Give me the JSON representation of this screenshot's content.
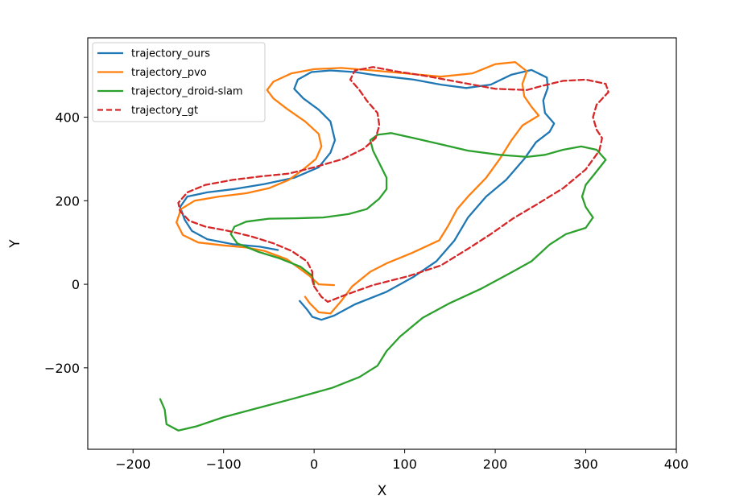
{
  "chart_data": {
    "type": "line",
    "title": "",
    "xlabel": "X",
    "ylabel": "Y",
    "xlim": [
      -250,
      400
    ],
    "ylim": [
      -395,
      590
    ],
    "xticks": [
      -200,
      -100,
      0,
      100,
      200,
      300,
      400
    ],
    "yticks": [
      -200,
      0,
      200,
      400
    ],
    "xtick_labels": [
      "−200",
      "−100",
      "0",
      "100",
      "200",
      "300",
      "400"
    ],
    "ytick_labels": [
      "−200",
      "0",
      "200",
      "400"
    ],
    "grid": false,
    "legend_position": "top-left",
    "series": [
      {
        "name": "trajectory_ours",
        "color": "#1f77b4",
        "dash": "solid",
        "points": [
          [
            -16,
            -40
          ],
          [
            -8,
            -60
          ],
          [
            -2,
            -78
          ],
          [
            8,
            -85
          ],
          [
            22,
            -75
          ],
          [
            45,
            -48
          ],
          [
            80,
            -18
          ],
          [
            110,
            18
          ],
          [
            135,
            55
          ],
          [
            155,
            105
          ],
          [
            170,
            160
          ],
          [
            190,
            210
          ],
          [
            212,
            250
          ],
          [
            232,
            300
          ],
          [
            245,
            340
          ],
          [
            260,
            365
          ],
          [
            265,
            385
          ],
          [
            255,
            410
          ],
          [
            253,
            440
          ],
          [
            258,
            470
          ],
          [
            257,
            495
          ],
          [
            240,
            513
          ],
          [
            218,
            502
          ],
          [
            195,
            478
          ],
          [
            168,
            470
          ],
          [
            140,
            478
          ],
          [
            110,
            490
          ],
          [
            70,
            500
          ],
          [
            45,
            508
          ],
          [
            18,
            512
          ],
          [
            -3,
            508
          ],
          [
            -18,
            490
          ],
          [
            -22,
            468
          ],
          [
            -12,
            445
          ],
          [
            5,
            418
          ],
          [
            18,
            390
          ],
          [
            23,
            345
          ],
          [
            18,
            315
          ],
          [
            5,
            280
          ],
          [
            -22,
            255
          ],
          [
            -55,
            240
          ],
          [
            -88,
            228
          ],
          [
            -118,
            220
          ],
          [
            -140,
            210
          ],
          [
            -148,
            185
          ],
          [
            -143,
            155
          ],
          [
            -135,
            128
          ],
          [
            -118,
            108
          ],
          [
            -90,
            96
          ],
          [
            -60,
            90
          ],
          [
            -40,
            82
          ]
        ]
      },
      {
        "name": "trajectory_pvo",
        "color": "#ff7f0e",
        "dash": "solid",
        "points": [
          [
            22,
            -2
          ],
          [
            5,
            0
          ],
          [
            -5,
            20
          ],
          [
            -30,
            60
          ],
          [
            -55,
            80
          ],
          [
            -75,
            88
          ],
          [
            -100,
            93
          ],
          [
            -128,
            100
          ],
          [
            -145,
            118
          ],
          [
            -152,
            148
          ],
          [
            -147,
            180
          ],
          [
            -132,
            200
          ],
          [
            -105,
            210
          ],
          [
            -75,
            218
          ],
          [
            -50,
            230
          ],
          [
            -28,
            250
          ],
          [
            -12,
            275
          ],
          [
            2,
            300
          ],
          [
            8,
            330
          ],
          [
            5,
            360
          ],
          [
            -10,
            390
          ],
          [
            -30,
            420
          ],
          [
            -45,
            445
          ],
          [
            -52,
            465
          ],
          [
            -45,
            485
          ],
          [
            -25,
            505
          ],
          [
            0,
            515
          ],
          [
            30,
            518
          ],
          [
            65,
            512
          ],
          [
            110,
            503
          ],
          [
            140,
            497
          ],
          [
            175,
            505
          ],
          [
            200,
            527
          ],
          [
            222,
            532
          ],
          [
            235,
            510
          ],
          [
            230,
            480
          ],
          [
            232,
            450
          ],
          [
            240,
            425
          ],
          [
            248,
            404
          ],
          [
            230,
            380
          ],
          [
            218,
            345
          ],
          [
            205,
            300
          ],
          [
            190,
            255
          ],
          [
            170,
            210
          ],
          [
            158,
            180
          ],
          [
            148,
            140
          ],
          [
            138,
            105
          ],
          [
            108,
            75
          ],
          [
            80,
            50
          ],
          [
            62,
            30
          ],
          [
            42,
            -5
          ],
          [
            30,
            -40
          ],
          [
            18,
            -70
          ],
          [
            5,
            -67
          ],
          [
            -5,
            -45
          ],
          [
            -10,
            -30
          ]
        ]
      },
      {
        "name": "trajectory_droid-slam",
        "color": "#2ca02c",
        "dash": "solid",
        "points": [
          [
            -170,
            -275
          ],
          [
            -165,
            -300
          ],
          [
            -163,
            -335
          ],
          [
            -150,
            -350
          ],
          [
            -130,
            -340
          ],
          [
            -100,
            -318
          ],
          [
            -60,
            -295
          ],
          [
            -20,
            -272
          ],
          [
            20,
            -248
          ],
          [
            50,
            -222
          ],
          [
            70,
            -195
          ],
          [
            80,
            -160
          ],
          [
            95,
            -125
          ],
          [
            120,
            -80
          ],
          [
            150,
            -45
          ],
          [
            185,
            -10
          ],
          [
            215,
            25
          ],
          [
            240,
            55
          ],
          [
            260,
            95
          ],
          [
            278,
            120
          ],
          [
            300,
            135
          ],
          [
            308,
            160
          ],
          [
            300,
            185
          ],
          [
            296,
            210
          ],
          [
            300,
            238
          ],
          [
            310,
            265
          ],
          [
            322,
            298
          ],
          [
            312,
            322
          ],
          [
            295,
            330
          ],
          [
            275,
            322
          ],
          [
            255,
            310
          ],
          [
            235,
            305
          ],
          [
            205,
            310
          ],
          [
            170,
            320
          ],
          [
            140,
            335
          ],
          [
            110,
            350
          ],
          [
            85,
            362
          ],
          [
            70,
            358
          ],
          [
            62,
            345
          ],
          [
            65,
            320
          ],
          [
            72,
            290
          ],
          [
            80,
            255
          ],
          [
            80,
            228
          ],
          [
            72,
            205
          ],
          [
            58,
            180
          ],
          [
            38,
            168
          ],
          [
            10,
            160
          ],
          [
            -20,
            158
          ],
          [
            -50,
            157
          ],
          [
            -75,
            150
          ],
          [
            -88,
            138
          ],
          [
            -92,
            120
          ],
          [
            -85,
            98
          ],
          [
            -62,
            78
          ],
          [
            -38,
            62
          ],
          [
            -15,
            42
          ],
          [
            -2,
            20
          ],
          [
            0,
            0
          ]
        ]
      },
      {
        "name": "trajectory_gt",
        "color": "#d62728",
        "dash": "dashed",
        "points": [
          [
            0,
            -5
          ],
          [
            8,
            -30
          ],
          [
            15,
            -42
          ],
          [
            35,
            -25
          ],
          [
            65,
            -2
          ],
          [
            105,
            20
          ],
          [
            140,
            45
          ],
          [
            170,
            85
          ],
          [
            195,
            120
          ],
          [
            220,
            158
          ],
          [
            245,
            190
          ],
          [
            275,
            230
          ],
          [
            300,
            275
          ],
          [
            315,
            320
          ],
          [
            318,
            350
          ],
          [
            312,
            370
          ],
          [
            308,
            400
          ],
          [
            312,
            430
          ],
          [
            325,
            460
          ],
          [
            322,
            480
          ],
          [
            300,
            490
          ],
          [
            275,
            487
          ],
          [
            250,
            474
          ],
          [
            235,
            465
          ],
          [
            200,
            468
          ],
          [
            175,
            478
          ],
          [
            150,
            488
          ],
          [
            120,
            500
          ],
          [
            90,
            510
          ],
          [
            65,
            520
          ],
          [
            45,
            512
          ],
          [
            40,
            490
          ],
          [
            50,
            465
          ],
          [
            58,
            440
          ],
          [
            70,
            410
          ],
          [
            72,
            380
          ],
          [
            68,
            350
          ],
          [
            55,
            325
          ],
          [
            32,
            300
          ],
          [
            0,
            280
          ],
          [
            -28,
            265
          ],
          [
            -60,
            258
          ],
          [
            -90,
            250
          ],
          [
            -120,
            238
          ],
          [
            -140,
            220
          ],
          [
            -150,
            195
          ],
          [
            -148,
            175
          ],
          [
            -138,
            152
          ],
          [
            -120,
            138
          ],
          [
            -95,
            128
          ],
          [
            -70,
            115
          ],
          [
            -45,
            98
          ],
          [
            -25,
            80
          ],
          [
            -8,
            55
          ],
          [
            -2,
            30
          ],
          [
            -2,
            10
          ],
          [
            0,
            -5
          ]
        ]
      }
    ]
  }
}
